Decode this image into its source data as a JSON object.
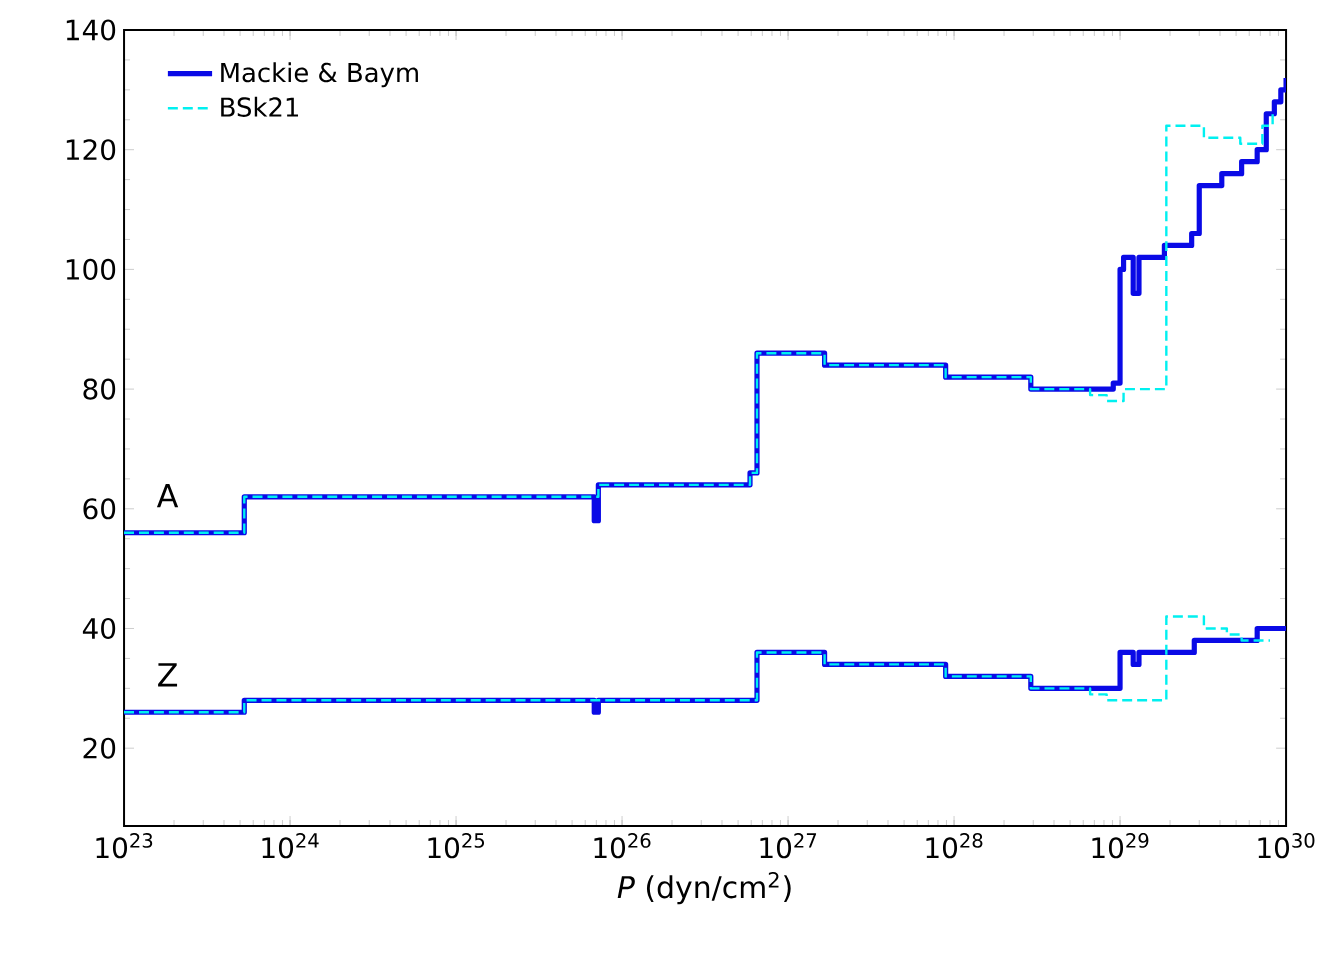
{
  "chart_data": {
    "type": "step",
    "xlabel": "*P* (dyn/cm$^{2}$)",
    "log": "x",
    "legend": "top left",
    "xlim": [
      1e+23,
      1e+30
    ],
    "xticks": [
      {
        "value": 1e+23,
        "label": "10$^{23}$"
      },
      {
        "value": 1e+24,
        "label": "10$^{24}$"
      },
      {
        "value": 1e+25,
        "label": "10$^{25}$"
      },
      {
        "value": 1e+26,
        "label": "10$^{26}$"
      },
      {
        "value": 1e+27,
        "label": "10$^{27}$"
      },
      {
        "value": 1e+28,
        "label": "10$^{28}$"
      },
      {
        "value": 1e+29,
        "label": "10$^{29}$"
      },
      {
        "value": 1e+30,
        "label": "10$^{30}$"
      }
    ],
    "ylim": [
      7,
      140
    ],
    "yticks": [
      20,
      40,
      60,
      80,
      100,
      120,
      140
    ],
    "annotations": [
      "A",
      "Z"
    ],
    "series": [
      {
        "name": "Mackie & Baym",
        "color": "#0a0ae6",
        "x": [
          1e+23,
          5.3e+23,
          6.8e+25,
          7.2e+25,
          5.9e+26,
          6.5e+26,
          1.66e+27,
          8.9e+27,
          2.9e+28,
          9.1e+28,
          1e+29,
          1.05e+29,
          1.2e+29,
          1.3e+29,
          1.85e+29,
          2.7e+29,
          3e+29,
          4.1e+29,
          5.4e+29,
          6.7e+29,
          7.6e+29,
          8.5e+29,
          9.3e+29,
          1e+30
        ],
        "values": [
          56,
          62,
          58,
          64,
          66,
          86,
          84,
          82,
          80,
          81,
          100,
          102,
          96,
          102,
          104,
          106,
          114,
          116,
          118,
          120,
          126,
          128,
          130,
          132
        ]
      },
      {
        "color": "#0a0ae6",
        "x": [
          1e+23,
          5.3e+23,
          6.8e+25,
          7.2e+25,
          6.5e+26,
          1.66e+27,
          8.9e+27,
          2.9e+28,
          1e+29,
          1.2e+29,
          1.3e+29,
          2.8e+29,
          6.7e+29,
          1e+30
        ],
        "values": [
          26,
          28,
          26,
          28,
          36,
          34,
          32,
          30,
          36,
          34,
          36,
          38,
          40,
          40
        ]
      },
      {
        "name": "BSk21",
        "color": "#00f0f0",
        "line_style": "dashed",
        "x": [
          1e+23,
          5.3e+23,
          7.2e+25,
          5.9e+26,
          6.5e+26,
          1.66e+27,
          8.9e+27,
          2.9e+28,
          6.6e+28,
          8.3e+28,
          1.05e+29,
          1.9e+29,
          3.2e+29,
          5.3e+29,
          7.2e+29,
          8.3e+29
        ],
        "values": [
          56,
          62,
          64,
          66,
          86,
          84,
          82,
          80,
          79,
          78,
          80,
          124,
          122,
          121,
          124,
          126
        ]
      },
      {
        "color": "#00f0f0",
        "line_style": "dashed",
        "x": [
          1e+23,
          5.3e+23,
          6.5e+26,
          1.66e+27,
          8.9e+27,
          2.9e+28,
          6.6e+28,
          8.3e+28,
          1.9e+29,
          3.2e+29,
          4.4e+29,
          5.4e+29,
          8e+29
        ],
        "values": [
          26,
          28,
          36,
          34,
          32,
          30,
          29,
          28,
          42,
          40,
          39,
          38,
          38
        ]
      }
    ]
  }
}
